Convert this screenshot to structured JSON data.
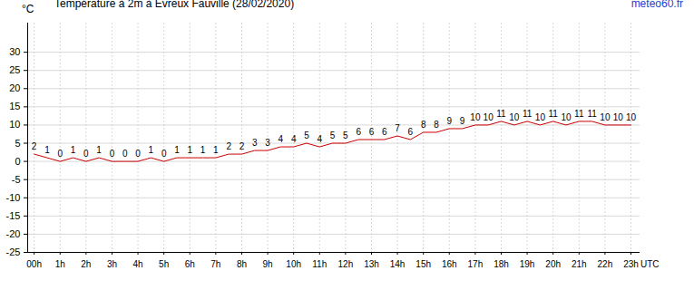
{
  "chart_data": {
    "type": "line",
    "title": "Température à 2m à Evreux Fauville (28/02/2020)",
    "annotations": [
      "meteo60.fr"
    ],
    "x_label": "UTC",
    "y_label": "°C",
    "x": [
      0,
      0.5,
      1,
      1.5,
      2,
      2.5,
      3,
      3.5,
      4,
      4.5,
      5,
      5.5,
      6,
      6.5,
      7,
      7.5,
      8,
      8.5,
      9,
      9.5,
      10,
      10.5,
      11,
      11.5,
      12,
      12.5,
      13,
      13.5,
      14,
      14.5,
      15,
      15.5,
      16,
      16.5,
      17,
      17.5,
      18,
      18.5,
      19,
      19.5,
      20,
      20.5,
      21,
      21.5,
      22,
      22.5,
      23
    ],
    "values": [
      2,
      1,
      0,
      1,
      0,
      1,
      0,
      0,
      0,
      1,
      0,
      1,
      1,
      1,
      1,
      2,
      2,
      3,
      3,
      4,
      4,
      5,
      4,
      5,
      5,
      6,
      6,
      6,
      7,
      6,
      8,
      8,
      9,
      9,
      10,
      10,
      11,
      10,
      11,
      10,
      11,
      10,
      11,
      11,
      10,
      10,
      10
    ],
    "color": "#cc0000",
    "xlim": [
      -0.25,
      23.35
    ],
    "xticks": [
      {
        "value": 0,
        "label": "00h"
      },
      {
        "value": 1,
        "label": "1h"
      },
      {
        "value": 2,
        "label": "2h"
      },
      {
        "value": 3,
        "label": "3h"
      },
      {
        "value": 4,
        "label": "4h"
      },
      {
        "value": 5,
        "label": "5h"
      },
      {
        "value": 6,
        "label": "6h"
      },
      {
        "value": 7,
        "label": "7h"
      },
      {
        "value": 8,
        "label": "8h"
      },
      {
        "value": 9,
        "label": "9h"
      },
      {
        "value": 10,
        "label": "10h"
      },
      {
        "value": 11,
        "label": "11h"
      },
      {
        "value": 12,
        "label": "12h"
      },
      {
        "value": 13,
        "label": "13h"
      },
      {
        "value": 14,
        "label": "14h"
      },
      {
        "value": 15,
        "label": "15h"
      },
      {
        "value": 16,
        "label": "16h"
      },
      {
        "value": 17,
        "label": "17h"
      },
      {
        "value": 18,
        "label": "18h"
      },
      {
        "value": 19,
        "label": "19h"
      },
      {
        "value": 20,
        "label": "20h"
      },
      {
        "value": 21,
        "label": "21h"
      },
      {
        "value": 22,
        "label": "22h"
      },
      {
        "value": 23,
        "label": "23h"
      }
    ],
    "ylim": [
      -25,
      38
    ],
    "yticks": [
      -25,
      -20,
      -15,
      -10,
      -5,
      0,
      5,
      10,
      15,
      20,
      25,
      30
    ],
    "grid": true,
    "data_labels": true
  }
}
